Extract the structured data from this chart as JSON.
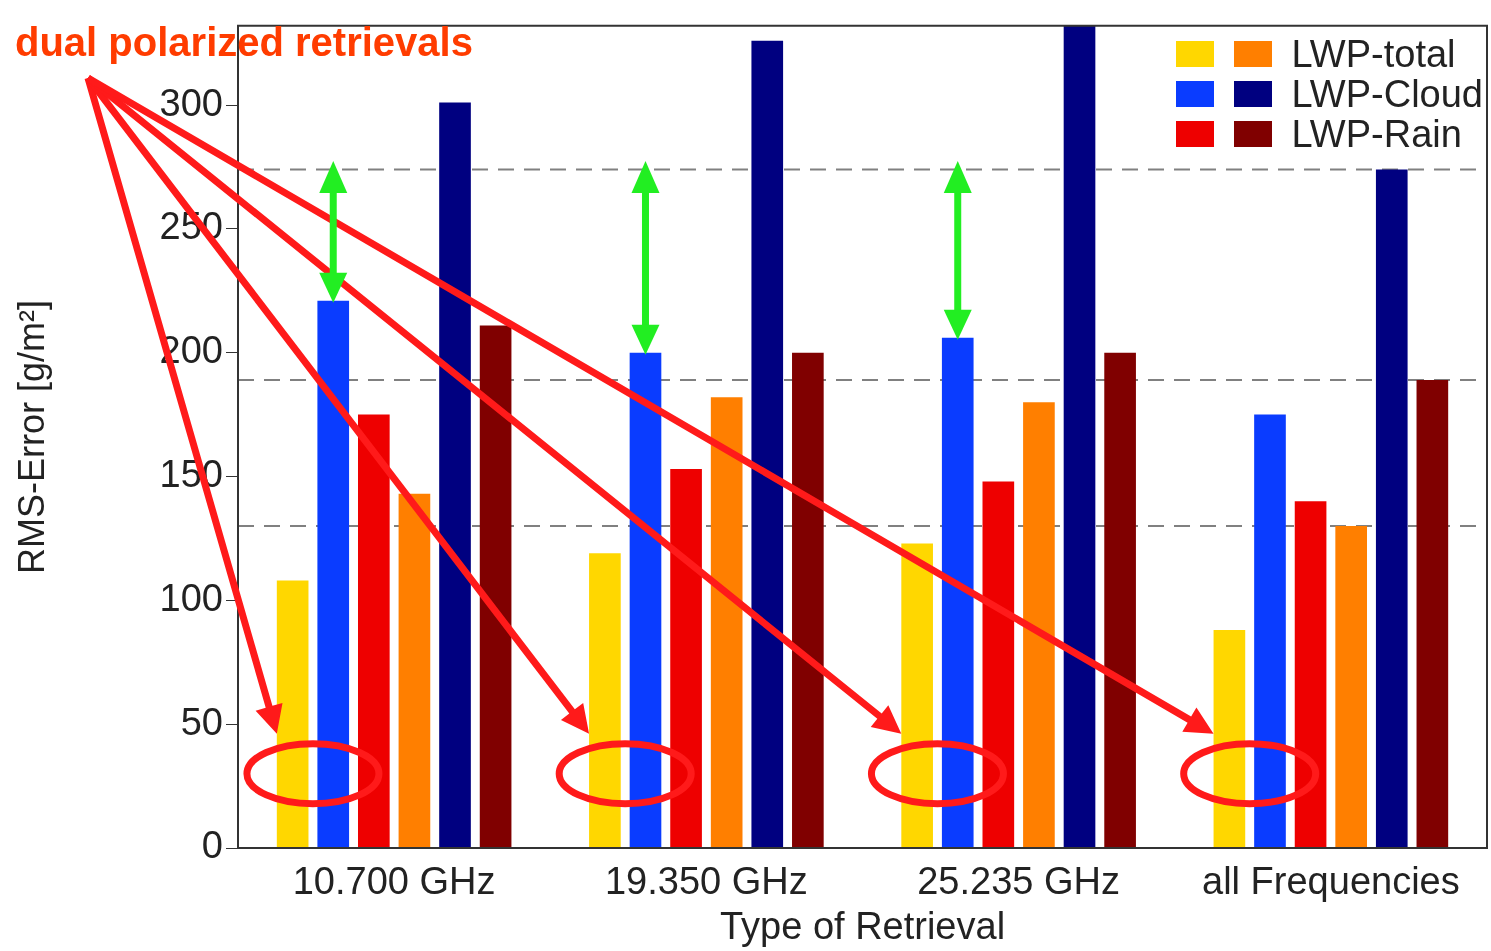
{
  "chart_data": {
    "type": "bar",
    "xlabel": "Type of Retrieval",
    "ylabel": "RMS-Error [g/m²]",
    "annotations": [
      "dual polarized retrievals"
    ],
    "categories": [
      "10.700 GHz",
      "19.350 GHz",
      "25.235 GHz",
      "all Frequencies"
    ],
    "series": [
      {
        "color": "#ffd700",
        "values": [
          108,
          119,
          123,
          88
        ]
      },
      {
        "color": "#0a3cff",
        "values": [
          221,
          200,
          206,
          175
        ]
      },
      {
        "color": "#ee0000",
        "values": [
          175,
          153,
          148,
          140
        ]
      },
      {
        "name": "LWP-total",
        "color": "#ff7f00",
        "values": [
          143,
          182,
          180,
          130
        ]
      },
      {
        "name": "LWP-Cloud",
        "color": "#000080",
        "values": [
          301,
          326,
          332,
          274
        ]
      },
      {
        "name": "LWP-Rain",
        "color": "#800000",
        "values": [
          211,
          200,
          200,
          189
        ]
      }
    ],
    "ylim": [
      0,
      332
    ],
    "yticks": [
      0,
      50,
      100,
      150,
      200,
      250,
      300
    ],
    "grid": false,
    "legend": "top right",
    "ref_lines": [
      {
        "axis": "y",
        "value": 274,
        "color": "#808080",
        "line_style": "dashed"
      },
      {
        "axis": "y",
        "value": 189,
        "color": "#808080",
        "line_style": "dashed"
      },
      {
        "axis": "y",
        "value": 130,
        "color": "#808080",
        "line_style": "dashed"
      }
    ]
  }
}
